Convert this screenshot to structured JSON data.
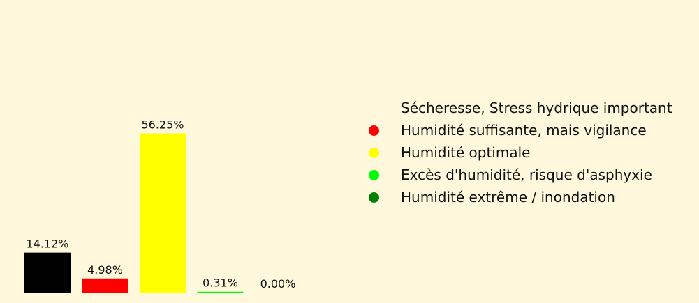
{
  "chart_data": {
    "type": "bar",
    "categories": [
      "Sécheresse, Stress hydrique important",
      "Humidité suffisante, mais vigilance",
      "Humidité optimale",
      "Excès d'humidité, risque d'asphyxie",
      "Humidité extrême / inondation"
    ],
    "values": [
      14.12,
      4.98,
      56.25,
      0.31,
      0.0
    ],
    "data_labels": [
      "14.12%",
      "4.98%",
      "56.25%",
      "0.31%",
      "0.00%"
    ],
    "colors": [
      "#000000",
      "#ff0000",
      "#ffff00",
      "#00ff00",
      "#008000"
    ],
    "legend_placement": "right",
    "grid": false,
    "axes_visible": false,
    "ylim": [
      0,
      100
    ]
  }
}
